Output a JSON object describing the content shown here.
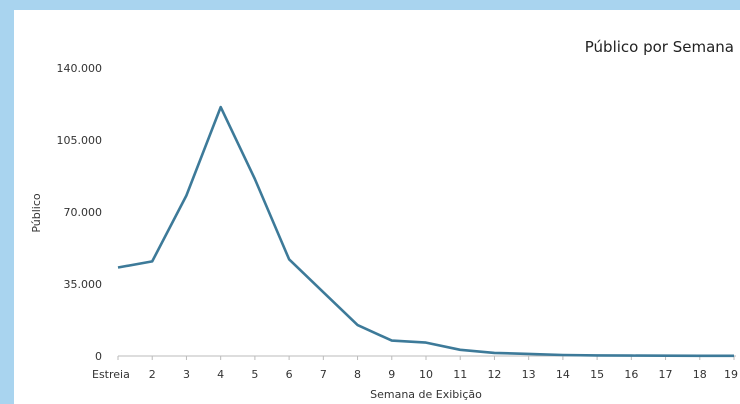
{
  "chart_data": {
    "type": "line",
    "title": "Público por Semana",
    "xlabel": "Semana de Exibição",
    "ylabel": "Público",
    "categories": [
      "Estreia",
      "2",
      "3",
      "4",
      "5",
      "6",
      "7",
      "8",
      "9",
      "10",
      "11",
      "12",
      "13",
      "14",
      "15",
      "16",
      "17",
      "18",
      "19"
    ],
    "yticks": [
      "0",
      "35.000",
      "70.000",
      "105.000",
      "140.000"
    ],
    "ylim": [
      0,
      140000
    ],
    "grid": false,
    "series": [
      {
        "values": [
          43000,
          46000,
          78000,
          121000,
          86000,
          47000,
          31000,
          15000,
          7500,
          6500,
          3000,
          1500,
          1000,
          500,
          300,
          200,
          150,
          100,
          80
        ]
      }
    ],
    "colors": {
      "line": "#3d7a99",
      "axis": "#bbbbbb"
    }
  }
}
